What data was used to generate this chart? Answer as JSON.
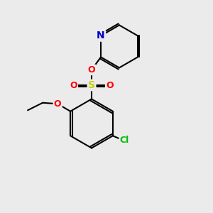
{
  "background_color": "#ebebeb",
  "bond_color": "#000000",
  "atom_colors": {
    "N": "#0000cc",
    "O": "#ff0000",
    "S": "#cccc00",
    "Cl": "#00bb00",
    "C": "#000000"
  },
  "bond_lw": 1.5,
  "font_size": 9,
  "fig_size": [
    3.0,
    3.0
  ],
  "dpi": 100
}
